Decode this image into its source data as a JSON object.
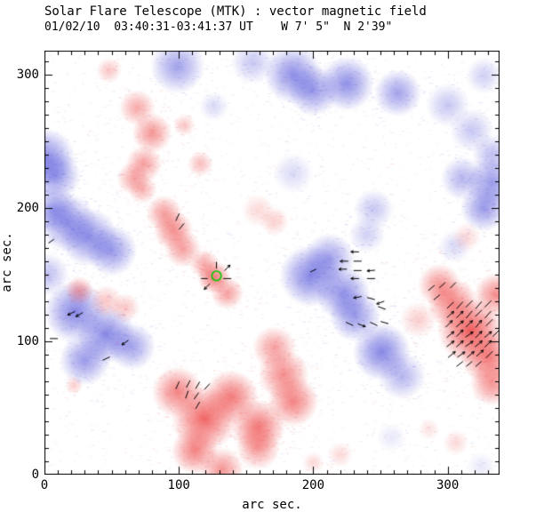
{
  "chart_data": {
    "type": "heatmap",
    "title": "Solar Flare Telescope (MTK) : vector magnetic field",
    "date_line": "01/02/10  03:40:31-03:41:37 UT    W 7' 5\"  N 2'39\"",
    "xlabel": "arc sec.",
    "ylabel": "arc sec.",
    "x_range": [
      0,
      338.6
    ],
    "y_range": [
      0,
      317.8
    ],
    "xticks": [
      0,
      100,
      200,
      300
    ],
    "yticks": [
      0,
      100,
      200,
      300
    ],
    "minor_tick_step": 10,
    "grid": false,
    "legend": null,
    "colors": {
      "positive": "#ee4040",
      "negative": "#4646d8",
      "vector": "#000000",
      "marker": "#00cc00",
      "axis": "#000000",
      "background": "#ffffff"
    },
    "polarity_encoding": {
      "red": "positive magnetic polarity",
      "blue": "negative magnetic polarity"
    },
    "flare_marker": {
      "x": 128,
      "y": 149,
      "r": 3.5
    },
    "blobs": [
      [
        99,
        306,
        15,
        0.5,
        "n"
      ],
      [
        155,
        309,
        12,
        0.3,
        "n"
      ],
      [
        185,
        300,
        16,
        0.6,
        "n"
      ],
      [
        200,
        288,
        14,
        0.55,
        "n"
      ],
      [
        225,
        293,
        15,
        0.6,
        "n"
      ],
      [
        263,
        286,
        13,
        0.5,
        "n"
      ],
      [
        300,
        277,
        12,
        0.3,
        "n"
      ],
      [
        318,
        258,
        12,
        0.3,
        "n"
      ],
      [
        327,
        299,
        10,
        0.25,
        "n"
      ],
      [
        333,
        219,
        14,
        0.55,
        "n"
      ],
      [
        311,
        222,
        12,
        0.4,
        "n"
      ],
      [
        327,
        200,
        13,
        0.55,
        "n"
      ],
      [
        333,
        240,
        11,
        0.35,
        "n"
      ],
      [
        1,
        238,
        16,
        0.6,
        "n"
      ],
      [
        8,
        224,
        14,
        0.55,
        "n"
      ],
      [
        7,
        199,
        13,
        0.5,
        "n"
      ],
      [
        2,
        150,
        12,
        0.35,
        "n"
      ],
      [
        17,
        189,
        16,
        0.55,
        "n"
      ],
      [
        33,
        178,
        16,
        0.6,
        "n"
      ],
      [
        50,
        168,
        14,
        0.55,
        "n"
      ],
      [
        126,
        276,
        8,
        0.2,
        "n"
      ],
      [
        185,
        226,
        11,
        0.2,
        "n"
      ],
      [
        245,
        199,
        11,
        0.3,
        "n"
      ],
      [
        240,
        180,
        10,
        0.25,
        "n"
      ],
      [
        305,
        171,
        9,
        0.2,
        "n"
      ],
      [
        198,
        149,
        17,
        0.65,
        "n"
      ],
      [
        212,
        162,
        14,
        0.5,
        "n"
      ],
      [
        222,
        136,
        15,
        0.6,
        "n"
      ],
      [
        231,
        119,
        14,
        0.55,
        "n"
      ],
      [
        251,
        92,
        16,
        0.65,
        "n"
      ],
      [
        266,
        74,
        13,
        0.4,
        "n"
      ],
      [
        23,
        122,
        17,
        0.65,
        "n"
      ],
      [
        46,
        105,
        16,
        0.65,
        "n"
      ],
      [
        30,
        86,
        14,
        0.55,
        "n"
      ],
      [
        65,
        96,
        13,
        0.5,
        "n"
      ],
      [
        258,
        28,
        8,
        0.12,
        "n"
      ],
      [
        325,
        6,
        8,
        0.12,
        "n"
      ],
      [
        48,
        303,
        7,
        0.3,
        "p"
      ],
      [
        69,
        275,
        10,
        0.45,
        "p"
      ],
      [
        80,
        256,
        11,
        0.55,
        "p"
      ],
      [
        74,
        233,
        10,
        0.5,
        "p"
      ],
      [
        66,
        222,
        9,
        0.45,
        "p"
      ],
      [
        73,
        214,
        8,
        0.4,
        "p"
      ],
      [
        104,
        262,
        6,
        0.3,
        "p"
      ],
      [
        116,
        233,
        7,
        0.35,
        "p"
      ],
      [
        89,
        196,
        10,
        0.5,
        "p"
      ],
      [
        96,
        183,
        11,
        0.6,
        "p"
      ],
      [
        103,
        169,
        10,
        0.5,
        "p"
      ],
      [
        159,
        198,
        9,
        0.2,
        "p"
      ],
      [
        171,
        190,
        8,
        0.25,
        "p"
      ],
      [
        126,
        148,
        9,
        0.7,
        "p"
      ],
      [
        136,
        136,
        9,
        0.5,
        "p"
      ],
      [
        119,
        158,
        8,
        0.45,
        "p"
      ],
      [
        26,
        138,
        8,
        0.45,
        "p"
      ],
      [
        46,
        130,
        9,
        0.3,
        "p"
      ],
      [
        60,
        125,
        8,
        0.3,
        "p"
      ],
      [
        22,
        67,
        5,
        0.25,
        "p"
      ],
      [
        119,
        42,
        18,
        0.8,
        "p"
      ],
      [
        99,
        62,
        14,
        0.65,
        "p"
      ],
      [
        139,
        58,
        15,
        0.7,
        "p"
      ],
      [
        159,
        36,
        15,
        0.7,
        "p"
      ],
      [
        112,
        18,
        13,
        0.65,
        "p"
      ],
      [
        178,
        75,
        14,
        0.6,
        "p"
      ],
      [
        171,
        95,
        12,
        0.5,
        "p"
      ],
      [
        185,
        55,
        14,
        0.65,
        "p"
      ],
      [
        132,
        4,
        12,
        0.55,
        "p"
      ],
      [
        159,
        20,
        12,
        0.5,
        "p"
      ],
      [
        317,
        108,
        18,
        0.85,
        "p"
      ],
      [
        304,
        128,
        14,
        0.65,
        "p"
      ],
      [
        330,
        88,
        15,
        0.7,
        "p"
      ],
      [
        294,
        142,
        12,
        0.55,
        "p"
      ],
      [
        336,
        135,
        12,
        0.6,
        "p"
      ],
      [
        333,
        68,
        12,
        0.55,
        "p"
      ],
      [
        278,
        116,
        10,
        0.25,
        "p"
      ],
      [
        314,
        178,
        8,
        0.2,
        "p"
      ],
      [
        306,
        24,
        7,
        0.2,
        "p"
      ],
      [
        286,
        34,
        6,
        0.15,
        "p"
      ],
      [
        220,
        15,
        7,
        0.2,
        "p"
      ],
      [
        200,
        9,
        6,
        0.2,
        "p"
      ]
    ],
    "vectors": [
      [
        99,
        193,
        65,
        6,
        0
      ],
      [
        102,
        186,
        50,
        6,
        0
      ],
      [
        128,
        157,
        90,
        5,
        0
      ],
      [
        136,
        155,
        45,
        6,
        1
      ],
      [
        121,
        141,
        225,
        6,
        1
      ],
      [
        136,
        147,
        0,
        6,
        0
      ],
      [
        119,
        147,
        180,
        5,
        0
      ],
      [
        231,
        167,
        180,
        6,
        1
      ],
      [
        223,
        160,
        180,
        6,
        1
      ],
      [
        233,
        160,
        0,
        6,
        0
      ],
      [
        222,
        154,
        180,
        6,
        1
      ],
      [
        233,
        153,
        0,
        6,
        0
      ],
      [
        243,
        153,
        185,
        6,
        1
      ],
      [
        200,
        153,
        205,
        5,
        0
      ],
      [
        231,
        147,
        180,
        6,
        1
      ],
      [
        243,
        147,
        0,
        6,
        0
      ],
      [
        233,
        133,
        190,
        6,
        1
      ],
      [
        243,
        132,
        345,
        6,
        0
      ],
      [
        250,
        129,
        200,
        6,
        1
      ],
      [
        251,
        125,
        340,
        6,
        0
      ],
      [
        227,
        113,
        335,
        6,
        0
      ],
      [
        236,
        112,
        340,
        6,
        1
      ],
      [
        245,
        113,
        335,
        6,
        0
      ],
      [
        253,
        114,
        345,
        6,
        0
      ],
      [
        288,
        140,
        40,
        6,
        0
      ],
      [
        296,
        142,
        42,
        6,
        0
      ],
      [
        304,
        142,
        45,
        6,
        0
      ],
      [
        292,
        133,
        40,
        6,
        0
      ],
      [
        302,
        127,
        45,
        7,
        0
      ],
      [
        309,
        127,
        48,
        7,
        0
      ],
      [
        316,
        128,
        45,
        7,
        0
      ],
      [
        323,
        127,
        50,
        7,
        0
      ],
      [
        330,
        128,
        45,
        7,
        0
      ],
      [
        302,
        120,
        42,
        7,
        1
      ],
      [
        309,
        120,
        45,
        7,
        1
      ],
      [
        316,
        120,
        50,
        7,
        0
      ],
      [
        323,
        121,
        45,
        7,
        0
      ],
      [
        330,
        120,
        48,
        7,
        0
      ],
      [
        301,
        113,
        45,
        7,
        1
      ],
      [
        309,
        113,
        40,
        7,
        1
      ],
      [
        316,
        113,
        45,
        7,
        1
      ],
      [
        323,
        113,
        50,
        7,
        1
      ],
      [
        331,
        114,
        45,
        7,
        0
      ],
      [
        302,
        105,
        40,
        7,
        1
      ],
      [
        309,
        106,
        45,
        7,
        1
      ],
      [
        316,
        105,
        35,
        7,
        1
      ],
      [
        323,
        105,
        45,
        7,
        1
      ],
      [
        330,
        105,
        40,
        7,
        1
      ],
      [
        336,
        106,
        45,
        7,
        0
      ],
      [
        302,
        98,
        38,
        7,
        1
      ],
      [
        309,
        98,
        42,
        7,
        1
      ],
      [
        316,
        98,
        35,
        7,
        1
      ],
      [
        323,
        98,
        40,
        7,
        1
      ],
      [
        330,
        98,
        45,
        7,
        1
      ],
      [
        303,
        90,
        40,
        7,
        1
      ],
      [
        310,
        90,
        35,
        7,
        1
      ],
      [
        317,
        90,
        40,
        7,
        1
      ],
      [
        324,
        91,
        42,
        7,
        1
      ],
      [
        331,
        90,
        45,
        7,
        0
      ],
      [
        309,
        83,
        38,
        6,
        0
      ],
      [
        316,
        83,
        40,
        6,
        0
      ],
      [
        323,
        83,
        42,
        6,
        0
      ],
      [
        99,
        67,
        65,
        6,
        0
      ],
      [
        107,
        68,
        62,
        6,
        0
      ],
      [
        114,
        67,
        60,
        6,
        0
      ],
      [
        121,
        66,
        48,
        6,
        0
      ],
      [
        106,
        60,
        70,
        6,
        0
      ],
      [
        113,
        59,
        55,
        6,
        0
      ],
      [
        114,
        52,
        60,
        6,
        0
      ],
      [
        20,
        121,
        205,
        6,
        1
      ],
      [
        26,
        120,
        210,
        6,
        1
      ],
      [
        60,
        99,
        215,
        6,
        1
      ],
      [
        46,
        87,
        205,
        6,
        0
      ],
      [
        7,
        102,
        180,
        6,
        0
      ],
      [
        5,
        175,
        215,
        5,
        0
      ]
    ]
  }
}
